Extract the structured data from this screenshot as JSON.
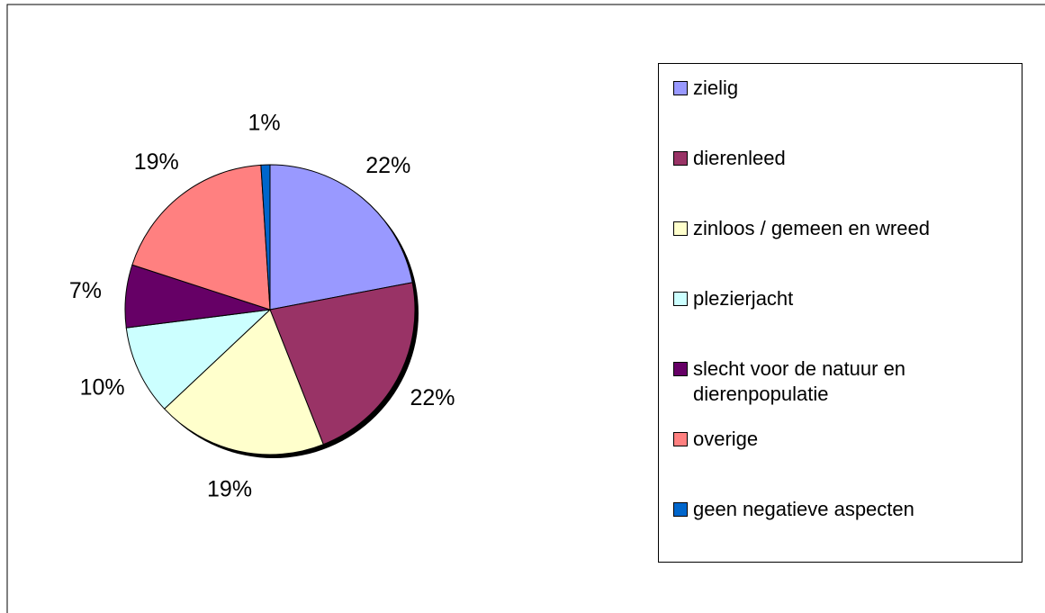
{
  "chart_data": {
    "type": "pie",
    "categories": [
      "zielig",
      "dierenleed",
      "zinloos / gemeen en wreed",
      "plezierjacht",
      "slecht voor de natuur en dierenpopulatie",
      "overige",
      "geen negatieve aspecten"
    ],
    "values": [
      22,
      22,
      19,
      10,
      7,
      19,
      1
    ],
    "value_labels": [
      "22%",
      "22%",
      "19%",
      "10%",
      "7%",
      "19%",
      "1%"
    ],
    "colors": [
      "#9999ff",
      "#993366",
      "#ffffcc",
      "#ccffff",
      "#660066",
      "#ff8080",
      "#0066cc"
    ],
    "legend": "right"
  }
}
